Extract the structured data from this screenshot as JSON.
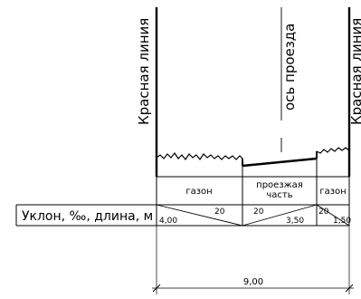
{
  "labels": {
    "red_line_left": "Красная линия",
    "red_line_right": "Красная линия",
    "axis": "ось проезда"
  },
  "zones": [
    {
      "name": "газон",
      "slope": "20",
      "length": "4,00"
    },
    {
      "name": "проезжая часть",
      "name_lines": [
        "проезжая",
        "часть"
      ],
      "slope": "20",
      "length": "3,50"
    },
    {
      "name": "газон",
      "slope": "20",
      "length": "1,50"
    }
  ],
  "row_label": "Уклон, ‰, длина, м",
  "total_dimension": "9,00"
}
